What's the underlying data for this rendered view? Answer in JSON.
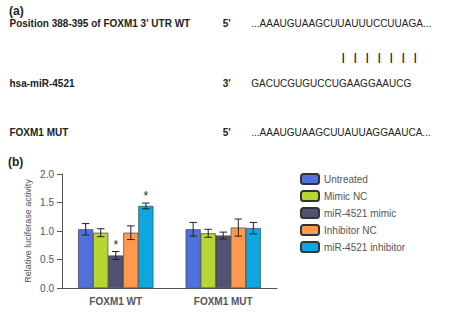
{
  "chart_data": {
    "type": "bar",
    "panel_labels": [
      "(a)",
      "(b)"
    ],
    "annotations": [
      {
        "label": "Position 388-395 of FOXM1 3' UTR WT",
        "prime": "5'",
        "seq": "...AAAUGUAAGCUUAUUUCCUUAGA..."
      },
      {
        "seq": "| | | | | | |"
      },
      {
        "label": "hsa-miR-4521",
        "prime": "3'",
        "seq": "GACUCGUGUCCUGAAGGAAUCG"
      },
      {
        "label": "FOXM1 MUT",
        "prime": "5'",
        "seq": "...AAAUGUAAGCUUAUUAGGAAUCA..."
      }
    ],
    "categories": [
      "FOXM1 WT",
      "FOXM1 MUT"
    ],
    "series": [
      {
        "name": "Untreated",
        "values": [
          1.03,
          1.03
        ],
        "errors": [
          0.1,
          0.12
        ],
        "significance": [
          null,
          null
        ]
      },
      {
        "name": "Mimic NC",
        "values": [
          0.97,
          0.96
        ],
        "errors": [
          0.07,
          0.07
        ],
        "significance": [
          null,
          null
        ]
      },
      {
        "name": "miR-4521 mimic",
        "values": [
          0.57,
          0.92
        ],
        "errors": [
          0.07,
          0.06
        ],
        "significance": [
          "*",
          null
        ]
      },
      {
        "name": "Inhibitor NC",
        "values": [
          0.97,
          1.06
        ],
        "errors": [
          0.12,
          0.15
        ],
        "significance": [
          null,
          null
        ]
      },
      {
        "name": "miR-4521 inhibitor",
        "values": [
          1.44,
          1.05
        ],
        "errors": [
          0.05,
          0.1
        ],
        "significance": [
          "*",
          null
        ]
      }
    ],
    "ylabel": "Relative luciferase activity",
    "ylim": [
      0.0,
      2.0
    ],
    "yticks": [
      {
        "value": 0.0,
        "label": "0.0"
      },
      0.5,
      {
        "value": 1.0,
        "label": "1.0"
      },
      1.5,
      {
        "value": 2.0,
        "label": "2.0"
      }
    ],
    "grid": false,
    "legend": "right"
  }
}
